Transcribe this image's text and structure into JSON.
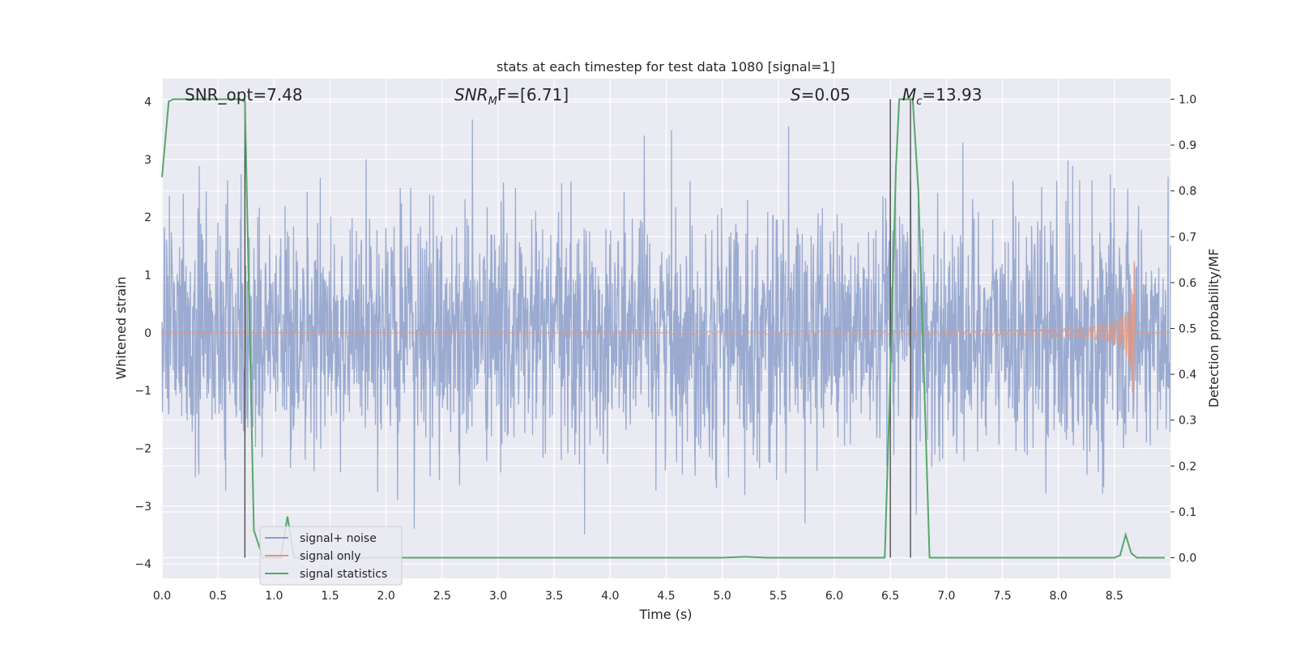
{
  "chart_data": {
    "type": "line",
    "title": "stats at each timestep for test data 1080 [signal=1]",
    "xlabel": "Time (s)",
    "ylabel_left": "Whitened strain",
    "ylabel_right": "Detection probability/MF",
    "xlim": [
      0,
      9.0
    ],
    "ylim_left": [
      -4.25,
      4.4
    ],
    "ylim_right": [
      -0.045,
      1.045
    ],
    "xticks": [
      "0.0",
      "0.5",
      "1.0",
      "1.5",
      "2.0",
      "2.5",
      "3.0",
      "3.5",
      "4.0",
      "4.5",
      "5.0",
      "5.5",
      "6.0",
      "6.5",
      "7.0",
      "7.5",
      "8.0",
      "8.5"
    ],
    "yticks_left": [
      "4",
      "3",
      "2",
      "1",
      "0",
      "−1",
      "−2",
      "−3",
      "−4"
    ],
    "yticks_right": [
      "1.0",
      "0.9",
      "0.8",
      "0.7",
      "0.6",
      "0.5",
      "0.4",
      "0.3",
      "0.2",
      "0.1",
      "0.0"
    ],
    "grid": true,
    "legend_position": "lower-left",
    "annotations": [
      "SNR_opt=7.48",
      "SNR",
      "M",
      "F=[6.71]",
      "S",
      "=0.05",
      "M",
      "c",
      "=13.93"
    ],
    "series": [
      {
        "name": "signal+ noise",
        "color": "#8c9fca",
        "axis": "left",
        "description_values": {
          "sample_rate_note": "dense noise, amplitude ~±2 with peaks to ~±4"
        }
      },
      {
        "name": "signal only",
        "color": "#e5967c",
        "axis": "left",
        "chirp_start": 4.5,
        "merger_time": 8.68,
        "peak_amplitude": 1.45
      },
      {
        "name": "signal statistics",
        "color": "#55a868",
        "axis": "right",
        "x": [
          0.0,
          0.06,
          0.1,
          0.2,
          0.5,
          0.68,
          0.74,
          0.82,
          0.9,
          1.0,
          1.06,
          1.12,
          1.18,
          1.25,
          1.5,
          2.0,
          3.0,
          4.0,
          5.0,
          5.2,
          5.4,
          6.0,
          6.45,
          6.5,
          6.55,
          6.58,
          6.65,
          6.7,
          6.75,
          6.8,
          6.85,
          7.0,
          8.0,
          8.5,
          8.55,
          8.6,
          8.65,
          8.7,
          8.8,
          8.95
        ],
        "values": [
          0.83,
          0.995,
          1.0,
          1.0,
          1.0,
          1.0,
          0.995,
          0.06,
          0.0,
          0.0,
          0.0,
          0.09,
          0.0,
          0.0,
          0.0,
          0.0,
          0.0,
          0.0,
          0.0,
          0.002,
          0.0,
          0.0,
          0.0,
          0.4,
          0.85,
          1.0,
          1.0,
          1.0,
          0.8,
          0.4,
          0.0,
          0.0,
          0.0,
          0.0,
          0.005,
          0.05,
          0.01,
          0.0,
          0.0,
          0.0
        ]
      }
    ],
    "vertical_lines": [
      0.74,
      6.5,
      6.68
    ]
  }
}
